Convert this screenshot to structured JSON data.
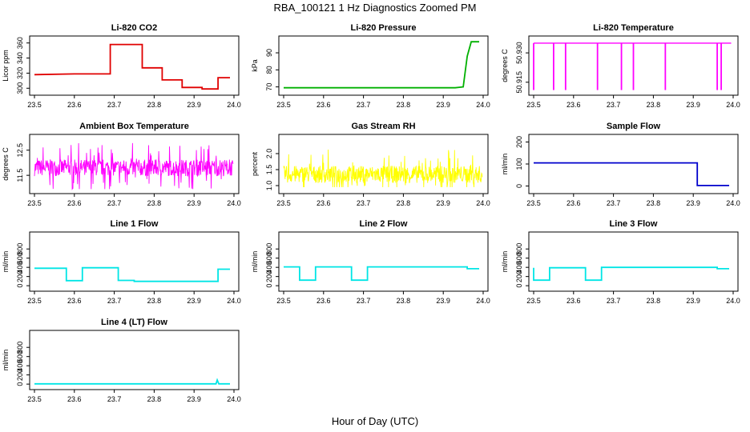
{
  "figure": {
    "title": "RBA_100121  1 Hz Diagnostics Zoomed PM",
    "xlabel": "Hour of Day (UTC)"
  },
  "chart_data": [
    {
      "id": "co2",
      "type": "line",
      "title": "Li-820 CO2",
      "ylabel": "Licor ppm",
      "color": "#e00000",
      "xlim": [
        23.5,
        24.0
      ],
      "ylim": [
        295,
        365
      ],
      "xticks": [
        "23.5",
        "23.6",
        "23.7",
        "23.8",
        "23.9",
        "24.0"
      ],
      "yticks": [
        300,
        320,
        340,
        360
      ],
      "series": [
        {
          "x": [
            23.5,
            23.6,
            23.69,
            23.69,
            23.77,
            23.77,
            23.82,
            23.82,
            23.87,
            23.87,
            23.92,
            23.92,
            23.96,
            23.96,
            23.99
          ],
          "values": [
            318,
            319,
            319,
            358,
            358,
            327,
            327,
            311,
            311,
            301,
            301,
            299,
            299,
            314,
            314
          ]
        }
      ]
    },
    {
      "id": "pressure",
      "type": "line",
      "title": "Li-820 Pressure",
      "ylabel": "kPa",
      "color": "#00b000",
      "xlim": [
        23.5,
        24.0
      ],
      "ylim": [
        67,
        98
      ],
      "xticks": [
        "23.5",
        "23.6",
        "23.7",
        "23.8",
        "23.9",
        "24.0"
      ],
      "yticks": [
        70,
        80,
        90
      ],
      "series": [
        {
          "x": [
            23.5,
            23.7,
            23.93,
            23.95,
            23.96,
            23.97,
            23.99
          ],
          "values": [
            69.5,
            69.5,
            69.5,
            70,
            88,
            96.5,
            96.5
          ]
        }
      ]
    },
    {
      "id": "licor_temp",
      "type": "line",
      "title": "Li-820 Temperature",
      "ylabel": "degrees C",
      "color": "#ff00ff",
      "xlim": [
        23.5,
        24.0
      ],
      "ylim": [
        50.91,
        50.937
      ],
      "xticks": [
        "23.5",
        "23.6",
        "23.7",
        "23.8",
        "23.9",
        "24.0"
      ],
      "yticks": [
        "50.915",
        "50.930"
      ],
      "series": [
        {
          "baseline": 50.935,
          "dips_x": [
            23.5,
            23.55,
            23.58,
            23.66,
            23.72,
            23.75,
            23.83,
            23.96,
            23.97
          ],
          "dip_value": 50.911
        }
      ]
    },
    {
      "id": "ambient_box",
      "type": "line",
      "title": "Ambient Box Temperature",
      "ylabel": "degrees C",
      "color": "#ff00ff",
      "xlim": [
        23.5,
        24.0
      ],
      "ylim": [
        10.9,
        13.0
      ],
      "xticks": [
        "23.5",
        "23.6",
        "23.7",
        "23.8",
        "23.9",
        "24.0"
      ],
      "yticks": [
        "11.5",
        "12.5"
      ],
      "series": [
        {
          "noise": {
            "center": 11.8,
            "amplitude": 0.55,
            "min": 10.95,
            "max": 12.95
          }
        }
      ]
    },
    {
      "id": "rh",
      "type": "line",
      "title": "Gas Stream RH",
      "ylabel": "percent",
      "color": "#ffff00",
      "xlim": [
        23.5,
        24.0
      ],
      "ylim": [
        0.85,
        2.5
      ],
      "xticks": [
        "23.5",
        "23.6",
        "23.7",
        "23.8",
        "23.9",
        "24.0"
      ],
      "yticks": [
        "1.0",
        "1.5",
        "2.0"
      ],
      "series": [
        {
          "noise": {
            "center": 1.35,
            "amplitude": 0.45,
            "min": 0.95,
            "max": 2.4
          }
        }
      ]
    },
    {
      "id": "sample_flow",
      "type": "line",
      "title": "Sample Flow",
      "ylabel": "ml/min",
      "color": "#0000cc",
      "xlim": [
        23.5,
        24.0
      ],
      "ylim": [
        -20,
        220
      ],
      "xticks": [
        "23.5",
        "23.6",
        "23.7",
        "23.8",
        "23.9",
        "24.0"
      ],
      "yticks": [
        0,
        100,
        200
      ],
      "series": [
        {
          "x": [
            23.5,
            23.7,
            23.91,
            23.91,
            23.99
          ],
          "values": [
            105,
            105,
            105,
            2,
            2
          ]
        }
      ]
    },
    {
      "id": "line1",
      "type": "line",
      "title": "Line 1 Flow",
      "ylabel": "ml/min",
      "color": "#00e5e5",
      "xlim": [
        23.5,
        24.0
      ],
      "ylim": [
        -50,
        1100
      ],
      "xticks": [
        "23.5",
        "23.6",
        "23.7",
        "23.8",
        "23.9",
        "24.0"
      ],
      "yticks": [
        0,
        200,
        400,
        600,
        800
      ],
      "series": [
        {
          "x": [
            23.5,
            23.58,
            23.58,
            23.62,
            23.62,
            23.71,
            23.71,
            23.75,
            23.75,
            23.96,
            23.96,
            23.99
          ],
          "values": [
            380,
            380,
            110,
            110,
            390,
            390,
            115,
            115,
            95,
            95,
            360,
            360
          ]
        }
      ]
    },
    {
      "id": "line2",
      "type": "line",
      "title": "Line 2 Flow",
      "ylabel": "ml/min",
      "color": "#00e5e5",
      "xlim": [
        23.5,
        24.0
      ],
      "ylim": [
        -50,
        1100
      ],
      "xticks": [
        "23.5",
        "23.6",
        "23.7",
        "23.8",
        "23.9",
        "24.0"
      ],
      "yticks": [
        0,
        200,
        400,
        600,
        800
      ],
      "series": [
        {
          "x": [
            23.5,
            23.54,
            23.54,
            23.58,
            23.58,
            23.67,
            23.67,
            23.71,
            23.71,
            23.96,
            23.96,
            23.99
          ],
          "values": [
            410,
            410,
            120,
            120,
            410,
            410,
            120,
            120,
            410,
            410,
            370,
            370
          ]
        }
      ]
    },
    {
      "id": "line3",
      "type": "line",
      "title": "Line 3 Flow",
      "ylabel": "ml/min",
      "color": "#00e5e5",
      "xlim": [
        23.5,
        24.0
      ],
      "ylim": [
        -50,
        1100
      ],
      "xticks": [
        "23.5",
        "23.6",
        "23.7",
        "23.8",
        "23.9",
        "24.0"
      ],
      "yticks": [
        0,
        200,
        400,
        600,
        800
      ],
      "series": [
        {
          "x": [
            23.5,
            23.5,
            23.54,
            23.54,
            23.63,
            23.63,
            23.67,
            23.67,
            23.96,
            23.96,
            23.99
          ],
          "values": [
            390,
            120,
            120,
            390,
            390,
            120,
            120,
            400,
            400,
            370,
            370
          ]
        }
      ]
    },
    {
      "id": "line4",
      "type": "line",
      "title": "Line 4 (LT) Flow",
      "ylabel": "ml/min",
      "color": "#00e5e5",
      "xlim": [
        23.5,
        24.0
      ],
      "ylim": [
        -50,
        1100
      ],
      "xticks": [
        "23.5",
        "23.6",
        "23.7",
        "23.8",
        "23.9",
        "24.0"
      ],
      "yticks": [
        0,
        200,
        400,
        600,
        800
      ],
      "series": [
        {
          "x": [
            23.5,
            23.955,
            23.958,
            23.962,
            23.99
          ],
          "values": [
            5,
            5,
            90,
            5,
            5
          ]
        }
      ]
    }
  ]
}
